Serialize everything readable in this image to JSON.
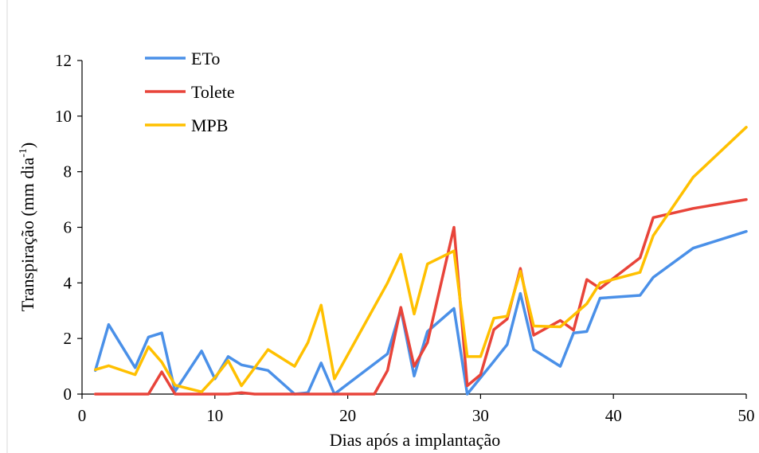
{
  "chart_data": {
    "type": "line",
    "title": "",
    "xlabel": "Dias após a implantação",
    "ylabel_main": "Transpiração (mm dia",
    "ylabel_sup": "-1",
    "ylabel_close": ")",
    "xlim": [
      0,
      50
    ],
    "ylim": [
      0,
      12
    ],
    "xticks": [
      0,
      10,
      20,
      30,
      40,
      50
    ],
    "yticks": [
      0,
      2,
      4,
      6,
      8,
      10,
      12
    ],
    "grid": false,
    "legend_position": "top-left",
    "series": [
      {
        "name": "ETo",
        "color": "#4A90E8",
        "points": [
          [
            1,
            0.85
          ],
          [
            2,
            2.5
          ],
          [
            4,
            0.95
          ],
          [
            5,
            2.05
          ],
          [
            6,
            2.2
          ],
          [
            7,
            0.1
          ],
          [
            9,
            1.55
          ],
          [
            10,
            0.55
          ],
          [
            11,
            1.35
          ],
          [
            12,
            1.05
          ],
          [
            14,
            0.85
          ],
          [
            16,
            0.0
          ],
          [
            17,
            0.05
          ],
          [
            18,
            1.12
          ],
          [
            19,
            0.0
          ],
          [
            23,
            1.45
          ],
          [
            24,
            3.05
          ],
          [
            25,
            0.65
          ],
          [
            26,
            2.25
          ],
          [
            28,
            3.08
          ],
          [
            29,
            0.0
          ],
          [
            31,
            1.18
          ],
          [
            32,
            1.78
          ],
          [
            33,
            3.62
          ],
          [
            34,
            1.6
          ],
          [
            36,
            1.0
          ],
          [
            37,
            2.2
          ],
          [
            38,
            2.25
          ],
          [
            39,
            3.45
          ],
          [
            42,
            3.55
          ],
          [
            43,
            4.2
          ],
          [
            46,
            5.25
          ],
          [
            50,
            5.85
          ]
        ]
      },
      {
        "name": "Tolete",
        "color": "#E8443A",
        "points": [
          [
            1,
            0.0
          ],
          [
            5,
            0.0
          ],
          [
            6,
            0.8
          ],
          [
            7,
            0.0
          ],
          [
            11,
            0.0
          ],
          [
            12,
            0.05
          ],
          [
            13,
            0.0
          ],
          [
            22,
            0.0
          ],
          [
            23,
            0.85
          ],
          [
            24,
            3.12
          ],
          [
            25,
            1.0
          ],
          [
            26,
            1.85
          ],
          [
            28,
            6.0
          ],
          [
            29,
            0.3
          ],
          [
            30,
            0.7
          ],
          [
            31,
            2.32
          ],
          [
            32,
            2.7
          ],
          [
            33,
            4.52
          ],
          [
            34,
            2.12
          ],
          [
            36,
            2.65
          ],
          [
            37,
            2.3
          ],
          [
            38,
            4.12
          ],
          [
            39,
            3.8
          ],
          [
            42,
            4.9
          ],
          [
            43,
            6.35
          ],
          [
            46,
            6.68
          ],
          [
            50,
            7.0
          ]
        ]
      },
      {
        "name": "MPB",
        "color": "#FFC000",
        "points": [
          [
            1,
            0.88
          ],
          [
            2,
            1.02
          ],
          [
            4,
            0.7
          ],
          [
            5,
            1.7
          ],
          [
            6,
            1.15
          ],
          [
            7,
            0.32
          ],
          [
            9,
            0.08
          ],
          [
            10,
            0.6
          ],
          [
            11,
            1.2
          ],
          [
            12,
            0.3
          ],
          [
            14,
            1.6
          ],
          [
            16,
            1.0
          ],
          [
            17,
            1.85
          ],
          [
            18,
            3.2
          ],
          [
            19,
            0.55
          ],
          [
            23,
            4.0
          ],
          [
            24,
            5.03
          ],
          [
            25,
            2.88
          ],
          [
            26,
            4.68
          ],
          [
            28,
            5.15
          ],
          [
            29,
            1.35
          ],
          [
            30,
            1.35
          ],
          [
            31,
            2.73
          ],
          [
            32,
            2.8
          ],
          [
            33,
            4.42
          ],
          [
            34,
            2.45
          ],
          [
            36,
            2.42
          ],
          [
            38,
            3.25
          ],
          [
            39,
            4.0
          ],
          [
            42,
            4.38
          ],
          [
            43,
            5.7
          ],
          [
            46,
            7.8
          ],
          [
            50,
            9.6
          ]
        ]
      }
    ]
  }
}
